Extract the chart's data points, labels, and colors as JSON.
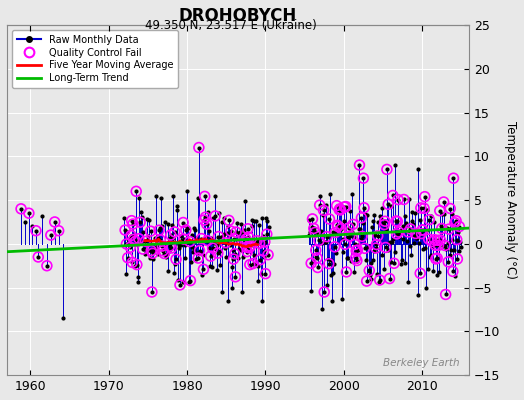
{
  "title": "DROHOBYCH",
  "subtitle": "49.350 N, 23.517 E (Ukraine)",
  "ylabel": "Temperature Anomaly (°C)",
  "watermark": "Berkeley Earth",
  "xlim": [
    1957,
    2016
  ],
  "ylim": [
    -15,
    25
  ],
  "yticks": [
    -15,
    -10,
    -5,
    0,
    5,
    10,
    15,
    20,
    25
  ],
  "xticks": [
    1960,
    1970,
    1980,
    1990,
    2000,
    2010
  ],
  "background_color": "#e8e8e8",
  "plot_bg_color": "#e8e8e8",
  "trend": {
    "x": [
      1957,
      2016
    ],
    "y": [
      -0.9,
      1.8
    ]
  },
  "raw_color": "#0000cc",
  "raw_dot_color": "#000000",
  "qc_color": "#ff00ff",
  "mavg_color": "#ff0000",
  "trend_color": "#00bb00",
  "legend_loc": "upper left"
}
